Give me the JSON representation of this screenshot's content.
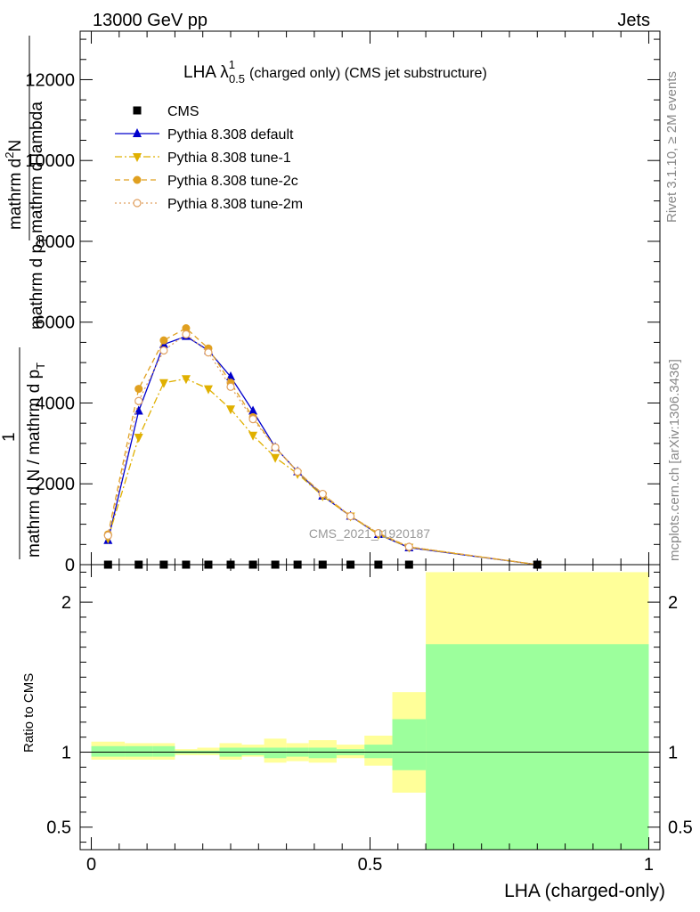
{
  "header": {
    "left": "13000 GeV pp",
    "right": "Jets"
  },
  "side_labels": {
    "rivet": "Rivet 3.1.10, ≥ 2M events",
    "mcplots": "mcplots.cern.ch [arXiv:1306.3436]"
  },
  "chart_data": [
    {
      "type": "line",
      "title_main": "LHA λ",
      "title_sup": "1",
      "title_sub": "0.5",
      "title_rest": "(charged only) (CMS jet substructure)",
      "ylabel_numerator_main": "mathrm d",
      "ylabel_numerator_sup": "2",
      "ylabel_numerator_end": "N",
      "ylabel_denominator_main": "mathrm d p",
      "ylabel_denominator_sub": "T",
      "ylabel_denominator_end": "mathrm d lambda",
      "ylabel_fraction_num": "1",
      "ylabel_fraction_den": "mathrm d N / mathrm d p",
      "ylabel_fraction_den_sub": "T",
      "watermark": "CMS_2021_I1920187",
      "xlim": [
        -0.02,
        1.02
      ],
      "ylim": [
        0,
        13200
      ],
      "yticks": [
        0,
        2000,
        4000,
        6000,
        8000,
        10000,
        12000
      ],
      "ytick_labels": [
        "0",
        "2000",
        "4000",
        "6000",
        "8000",
        "10000",
        "12000"
      ],
      "legend_position": "top-left",
      "x": [
        0.03,
        0.085,
        0.13,
        0.17,
        0.21,
        0.25,
        0.29,
        0.33,
        0.37,
        0.415,
        0.465,
        0.515,
        0.57,
        0.8
      ],
      "series": [
        {
          "name": "CMS",
          "color": "#000000",
          "marker": "square",
          "values": [
            0,
            0,
            0,
            0,
            0,
            0,
            0,
            0,
            0,
            0,
            0,
            0,
            0,
            0
          ]
        },
        {
          "name": "Pythia 8.308 default",
          "color": "#0000cc",
          "marker": "triangle-up",
          "dash": "solid",
          "values": [
            600,
            3800,
            5450,
            5650,
            5300,
            4650,
            3800,
            2900,
            2300,
            1700,
            1200,
            750,
            420,
            0
          ]
        },
        {
          "name": "Pythia 8.308 tune-1",
          "color": "#e0b000",
          "marker": "triangle-down",
          "dash": "dashdot",
          "values": [
            650,
            3150,
            4500,
            4600,
            4350,
            3850,
            3200,
            2650,
            2250,
            1700,
            1200,
            750,
            430,
            0
          ]
        },
        {
          "name": "Pythia 8.308 tune-2c",
          "color": "#e0a020",
          "marker": "circle",
          "dash": "dashed",
          "values": [
            750,
            4350,
            5550,
            5850,
            5350,
            4500,
            3650,
            2900,
            2300,
            1750,
            1200,
            780,
            440,
            0
          ]
        },
        {
          "name": "Pythia 8.308 tune-2m",
          "color": "#e0a060",
          "marker": "circle-open",
          "dash": "dotted",
          "values": [
            720,
            4050,
            5300,
            5700,
            5250,
            4400,
            3600,
            2900,
            2300,
            1750,
            1200,
            780,
            440,
            0
          ]
        }
      ]
    },
    {
      "type": "area",
      "ylabel": "Ratio to CMS",
      "xlabel": "LHA (charged-only)",
      "xlim": [
        -0.02,
        1.02
      ],
      "ylim": [
        0.35,
        2.25
      ],
      "xticks": [
        0,
        0.5,
        1
      ],
      "xtick_labels": [
        "0",
        "0.5",
        "1"
      ],
      "yticks": [
        0.5,
        1,
        2
      ],
      "ytick_labels": [
        "0.5",
        "1",
        "2"
      ],
      "reference_line": 1,
      "bins": [
        {
          "x0": 0.0,
          "x1": 0.06,
          "stat_lo": 0.97,
          "stat_hi": 1.04,
          "tot_lo": 0.95,
          "tot_hi": 1.07
        },
        {
          "x0": 0.06,
          "x1": 0.11,
          "stat_lo": 0.97,
          "stat_hi": 1.04,
          "tot_lo": 0.95,
          "tot_hi": 1.06
        },
        {
          "x0": 0.11,
          "x1": 0.15,
          "stat_lo": 0.97,
          "stat_hi": 1.04,
          "tot_lo": 0.95,
          "tot_hi": 1.06
        },
        {
          "x0": 0.15,
          "x1": 0.19,
          "stat_lo": 0.99,
          "stat_hi": 1.01,
          "tot_lo": 0.98,
          "tot_hi": 1.02
        },
        {
          "x0": 0.19,
          "x1": 0.23,
          "stat_lo": 0.99,
          "stat_hi": 1.01,
          "tot_lo": 0.98,
          "tot_hi": 1.03
        },
        {
          "x0": 0.23,
          "x1": 0.27,
          "stat_lo": 0.97,
          "stat_hi": 1.03,
          "tot_lo": 0.95,
          "tot_hi": 1.06
        },
        {
          "x0": 0.27,
          "x1": 0.31,
          "stat_lo": 0.98,
          "stat_hi": 1.03,
          "tot_lo": 0.97,
          "tot_hi": 1.05
        },
        {
          "x0": 0.31,
          "x1": 0.35,
          "stat_lo": 0.96,
          "stat_hi": 1.03,
          "tot_lo": 0.93,
          "tot_hi": 1.09
        },
        {
          "x0": 0.35,
          "x1": 0.39,
          "stat_lo": 0.97,
          "stat_hi": 1.03,
          "tot_lo": 0.94,
          "tot_hi": 1.06
        },
        {
          "x0": 0.39,
          "x1": 0.44,
          "stat_lo": 0.96,
          "stat_hi": 1.03,
          "tot_lo": 0.93,
          "tot_hi": 1.08
        },
        {
          "x0": 0.44,
          "x1": 0.49,
          "stat_lo": 0.98,
          "stat_hi": 1.02,
          "tot_lo": 0.96,
          "tot_hi": 1.05
        },
        {
          "x0": 0.49,
          "x1": 0.54,
          "stat_lo": 0.96,
          "stat_hi": 1.05,
          "tot_lo": 0.91,
          "tot_hi": 1.11
        },
        {
          "x0": 0.54,
          "x1": 0.6,
          "stat_lo": 0.88,
          "stat_hi": 1.22,
          "tot_lo": 0.73,
          "tot_hi": 1.4
        },
        {
          "x0": 0.6,
          "x1": 1.0,
          "stat_lo": 0.35,
          "stat_hi": 1.72,
          "tot_lo": 0.35,
          "tot_hi": 2.2
        }
      ],
      "colors": {
        "stat": "#9cff9c",
        "total": "#ffff99"
      }
    }
  ]
}
